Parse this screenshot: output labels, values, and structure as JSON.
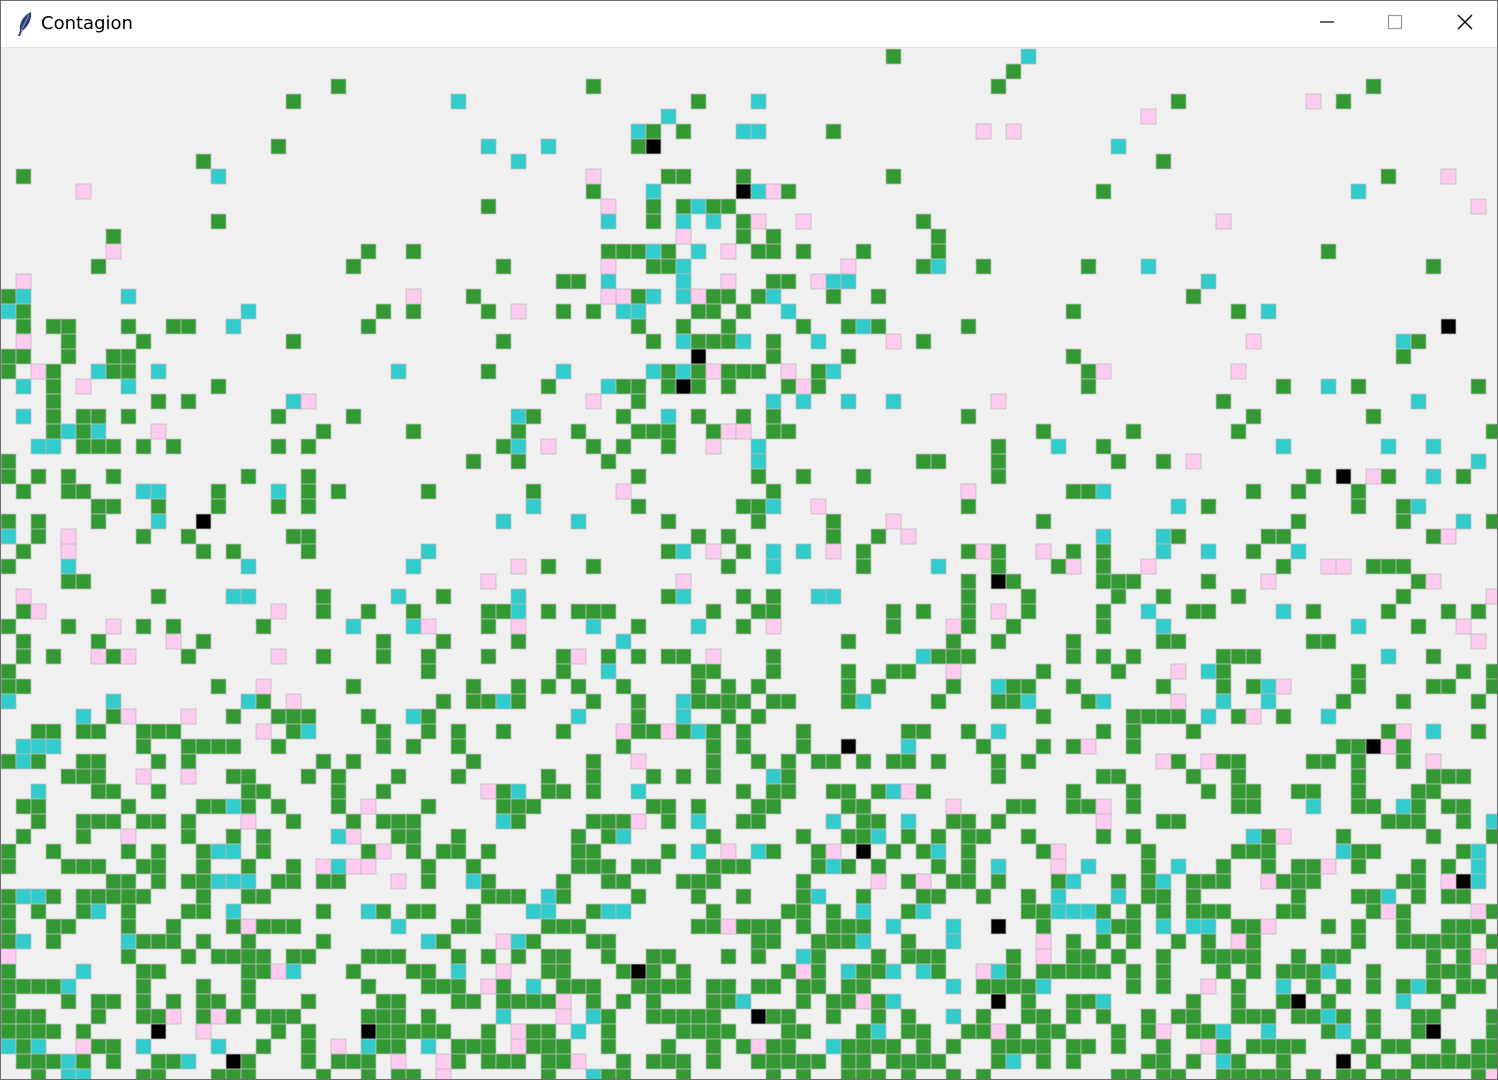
{
  "window": {
    "title": "Contagion",
    "icon": "feather-icon",
    "controls": {
      "minimize": "minimize-icon",
      "maximize": "maximize-icon",
      "close": "close-icon"
    }
  },
  "colors": {
    "background": "#f0f0f0",
    "healthy": "#339933",
    "infected": "#33cccc",
    "recovered": "#ffccf0",
    "dead": "#000000",
    "cell_border": "#bdbdbd"
  },
  "simulation": {
    "cell_states": [
      "empty",
      "healthy",
      "infected",
      "recovered",
      "dead"
    ]
  }
}
